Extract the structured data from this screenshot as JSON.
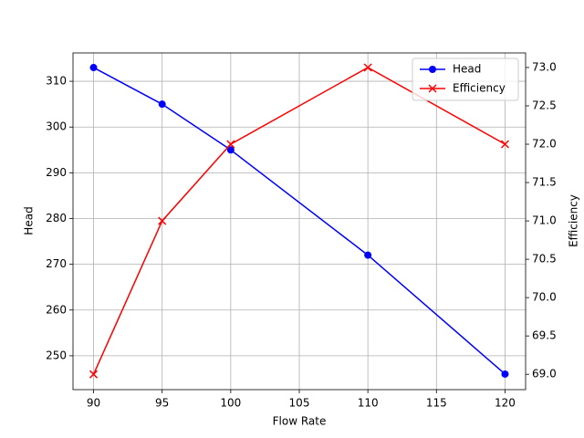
{
  "chart_data": {
    "type": "line",
    "x_label": "Flow Rate",
    "y_label": "Head",
    "y2_label": "Efficiency",
    "y_label_color": "#0000ff",
    "y2_label_color": "#ff0000",
    "x": [
      90,
      95,
      100,
      110,
      120
    ],
    "series": [
      {
        "name": "Head",
        "color": "#0000ff",
        "marker": "o",
        "values": [
          313,
          305,
          295,
          272,
          246
        ]
      },
      {
        "name": "Efficiency",
        "color": "#ff0000",
        "marker": "x",
        "axis": "y2",
        "values": [
          69,
          71,
          72,
          73,
          72
        ]
      }
    ],
    "xlim": [
      88.5,
      121.5
    ],
    "xticks": [
      90,
      95,
      100,
      105,
      110,
      115,
      120
    ],
    "ylim": [
      242.6,
      316.2
    ],
    "yticks": [
      250,
      260,
      270,
      280,
      290,
      300,
      310
    ],
    "y2lim": [
      68.8,
      73.19
    ],
    "y2ticks": [
      {
        "value": 69,
        "label": "69.0"
      },
      {
        "value": 69.5,
        "label": "69.5"
      },
      {
        "value": 70,
        "label": "70.0"
      },
      {
        "value": 70.5,
        "label": "70.5"
      },
      {
        "value": 71,
        "label": "71.0"
      },
      {
        "value": 71.5,
        "label": "71.5"
      },
      {
        "value": 72,
        "label": "72.0"
      },
      {
        "value": 72.5,
        "label": "72.5"
      },
      {
        "value": 73,
        "label": "73.0"
      }
    ],
    "grid": true,
    "legend": "upper right"
  }
}
